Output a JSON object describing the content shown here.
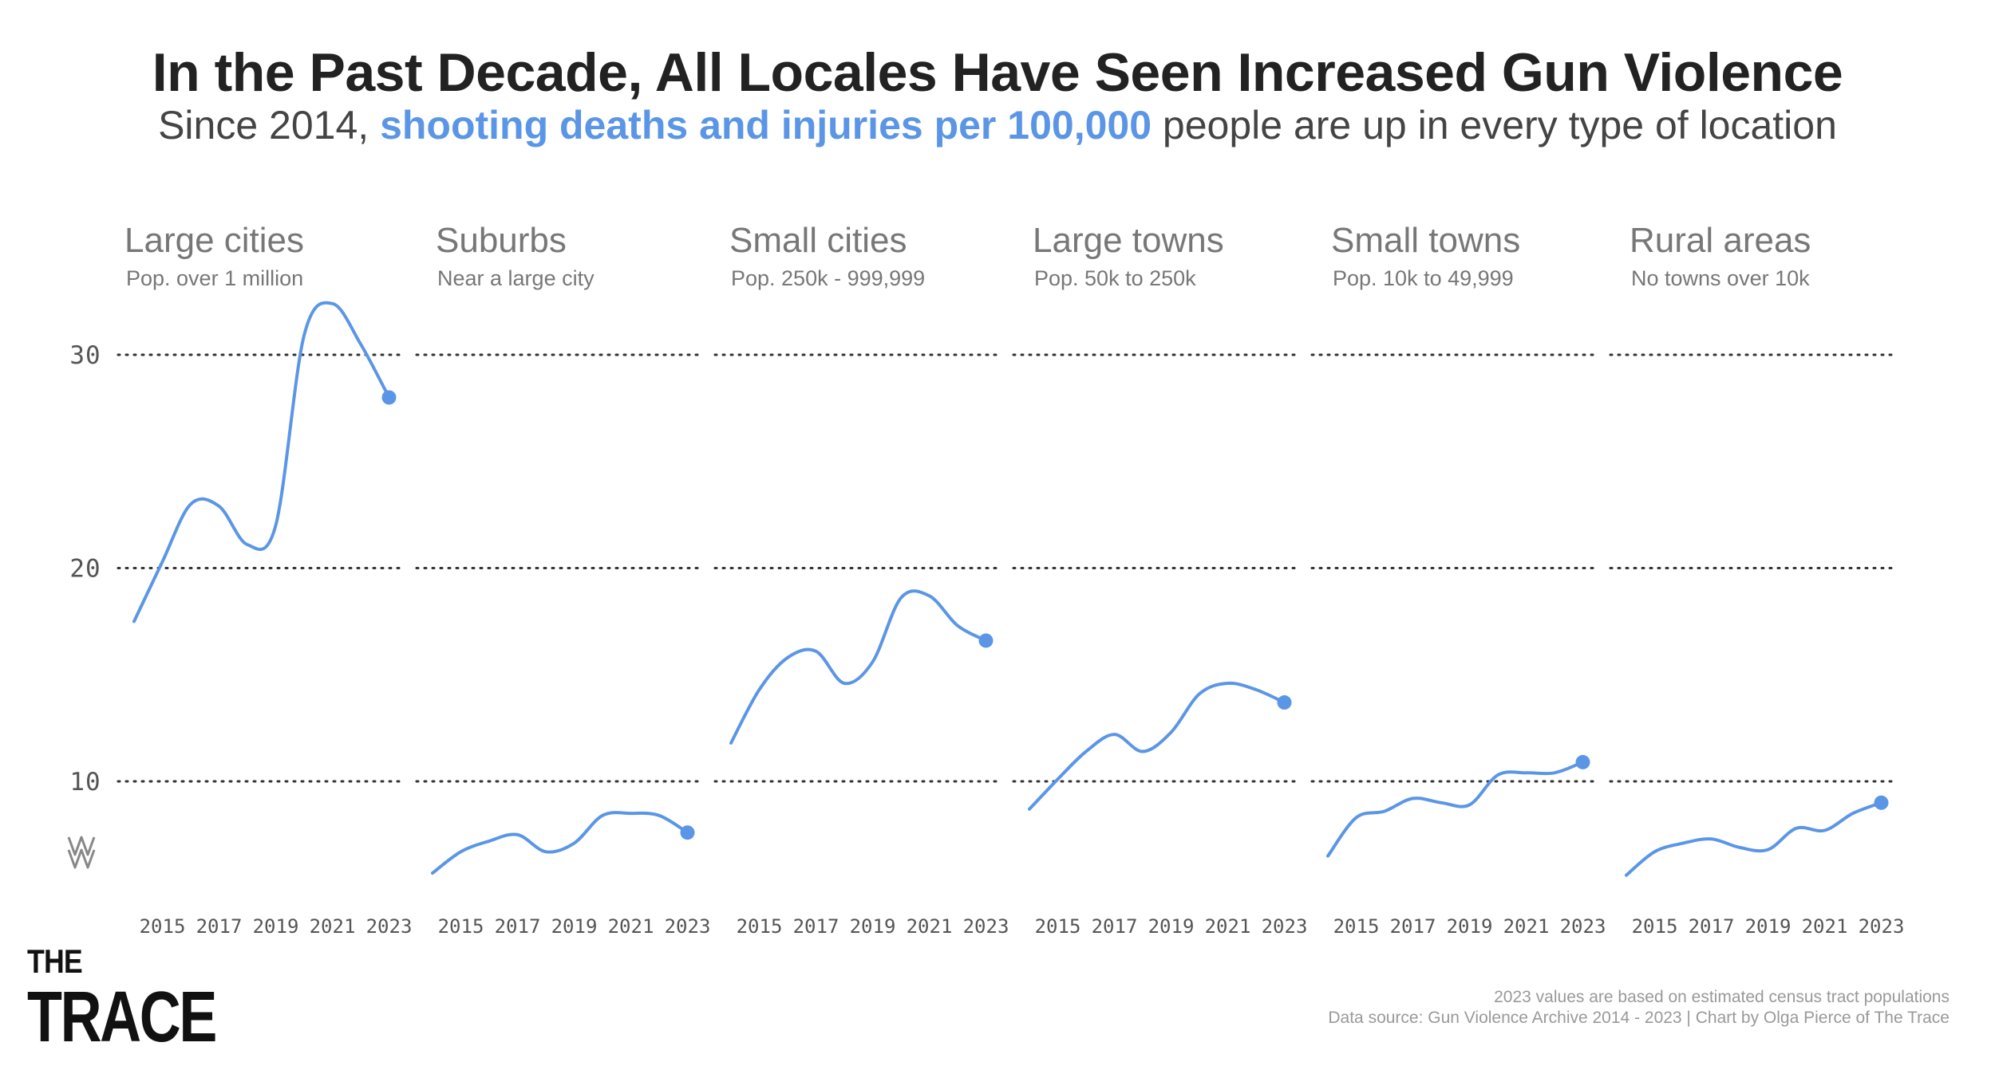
{
  "title": "In the Past Decade, All Locales Have Seen Increased Gun Violence",
  "subtitle": {
    "prefix": "Since 2014, ",
    "highlight": "shooting deaths and injuries per 100,000",
    "suffix": " people are up in every type of location"
  },
  "colors": {
    "line": "#5b96e6",
    "grid": "#333333",
    "panel_title": "#777777",
    "panel_sub": "#777777",
    "axis_text": "#555555"
  },
  "chart_data": {
    "type": "line",
    "ylim": [
      5,
      30
    ],
    "y_ticks": [
      10,
      20,
      30
    ],
    "x_ticks": [
      2015,
      2017,
      2019,
      2021,
      2023
    ],
    "grid": "dotted horizontal",
    "panels": [
      {
        "title": "Large cities",
        "subtitle": "Pop. over 1 million",
        "x": [
          2014,
          2015,
          2016,
          2017,
          2018,
          2019,
          2020,
          2021,
          2022,
          2023
        ],
        "y": [
          17.5,
          20.3,
          23.0,
          22.9,
          21.1,
          22.0,
          30.9,
          32.4,
          30.5,
          28.0
        ]
      },
      {
        "title": "Suburbs",
        "subtitle": "Near a large city",
        "x": [
          2014,
          2015,
          2016,
          2017,
          2018,
          2019,
          2020,
          2021,
          2022,
          2023
        ],
        "y": [
          5.7,
          6.7,
          7.2,
          7.5,
          6.7,
          7.1,
          8.4,
          8.5,
          8.4,
          7.6
        ]
      },
      {
        "title": "Small cities",
        "subtitle": "Pop. 250k - 999,999",
        "x": [
          2014,
          2015,
          2016,
          2017,
          2018,
          2019,
          2020,
          2021,
          2022,
          2023
        ],
        "y": [
          11.8,
          14.3,
          15.8,
          16.1,
          14.6,
          15.6,
          18.6,
          18.7,
          17.3,
          16.6
        ]
      },
      {
        "title": "Large towns",
        "subtitle": "Pop. 50k to 250k",
        "x": [
          2014,
          2015,
          2016,
          2017,
          2018,
          2019,
          2020,
          2021,
          2022,
          2023
        ],
        "y": [
          8.7,
          10.1,
          11.4,
          12.2,
          11.4,
          12.3,
          14.1,
          14.6,
          14.3,
          13.7
        ]
      },
      {
        "title": "Small towns",
        "subtitle": "Pop. 10k to 49,999",
        "x": [
          2014,
          2015,
          2016,
          2017,
          2018,
          2019,
          2020,
          2021,
          2022,
          2023
        ],
        "y": [
          6.5,
          8.3,
          8.6,
          9.2,
          9.0,
          8.9,
          10.3,
          10.4,
          10.4,
          10.9
        ]
      },
      {
        "title": "Rural areas",
        "subtitle": "No towns over 10k",
        "x": [
          2014,
          2015,
          2016,
          2017,
          2018,
          2019,
          2020,
          2021,
          2022,
          2023
        ],
        "y": [
          5.6,
          6.7,
          7.1,
          7.3,
          6.9,
          6.8,
          7.8,
          7.7,
          8.5,
          9.0
        ]
      }
    ]
  },
  "notes": {
    "line1": "2023 values are based on estimated census tract populations",
    "line2": "Data source: Gun Violence Archive 2014 - 2023 | Chart by Olga Pierce of The Trace"
  },
  "logo": {
    "line1": "THE",
    "line2": "TRACE"
  }
}
